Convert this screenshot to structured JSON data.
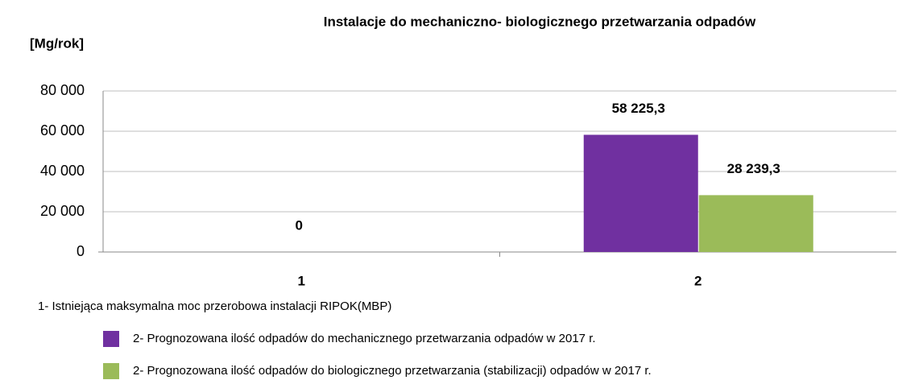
{
  "chart_data": {
    "type": "bar",
    "title": "Instalacje do mechaniczno- biologicznego przetwarzania odpadów",
    "y_label": "[Mg/rok]",
    "categories": [
      "1",
      "2"
    ],
    "series": [
      {
        "name": "1- Istniejąca maksymalna moc przerobowa instalacji RIPOK(MBP)",
        "values": [
          0,
          null
        ],
        "value_labels": [
          "0",
          null
        ]
      },
      {
        "name": "2- Prognozowana ilość odpadów do mechanicznego przetwarzania odpadów w 2017 r.",
        "color": "#7030a0",
        "values": [
          null,
          58225.3
        ],
        "value_labels": [
          null,
          "58 225,3"
        ]
      },
      {
        "name": "2- Prognozowana ilość odpadów do biologicznego przetwarzania (stabilizacji) odpadów w 2017 r.",
        "color": "#9bbb59",
        "values": [
          null,
          28239.3
        ],
        "value_labels": [
          null,
          "28 239,3"
        ]
      }
    ],
    "ylim": [
      0,
      80000
    ],
    "yticks": [
      0,
      {
        "value": 20000,
        "label": "20 000"
      },
      {
        "value": 40000,
        "label": "40 000"
      },
      {
        "value": 60000,
        "label": "60 000"
      },
      {
        "value": 80000,
        "label": "80 000"
      }
    ],
    "grid": true
  }
}
